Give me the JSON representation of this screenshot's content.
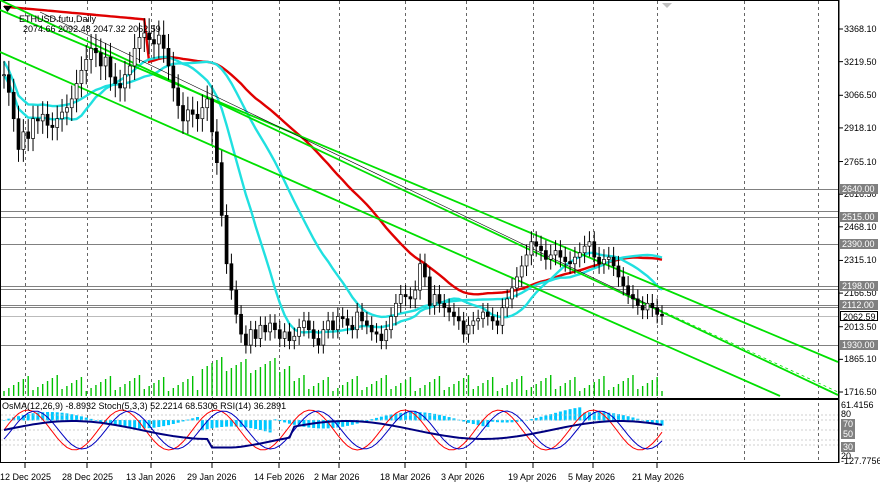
{
  "header": {
    "symbol": "ETHUSD.futu,Daily",
    "ohlc": "2074.66 2092.48 2047.32 2062.59"
  },
  "indicator_header": "OsMA(12,26,9) -8.8932 Stoch(5,3,3) 52.2214 68.5306 RSI(14) 36.2891",
  "price_ticks": [
    "3368.10",
    "3219.50",
    "3066.50",
    "2918.10",
    "2765.10",
    "2616.50",
    "2468.10",
    "2315.10",
    "2166.50",
    "2013.50",
    "1865.10",
    "1716.50"
  ],
  "level_labels": [
    {
      "text": "2640.00",
      "bg": "#808080",
      "fg": "#ffffff"
    },
    {
      "text": "2515.00",
      "bg": "#808080",
      "fg": "#ffffff"
    },
    {
      "text": "2390.00",
      "bg": "#808080",
      "fg": "#ffffff"
    },
    {
      "text": "2198.00",
      "bg": "#808080",
      "fg": "#ffffff"
    },
    {
      "text": "2112.00",
      "bg": "#808080",
      "fg": "#ffffff"
    },
    {
      "text": "2062.59",
      "bg": "#ffffff",
      "fg": "#000000"
    },
    {
      "text": "1930.00",
      "bg": "#808080",
      "fg": "#ffffff"
    }
  ],
  "ind_ticks": [
    "61.4156",
    "80",
    "70",
    "50",
    "30",
    "20",
    "-127.7756"
  ],
  "date_labels": [
    "12 Dec 2025",
    "28 Dec 2025",
    "13 Jan 2026",
    "29 Jan 2026",
    "14 Feb 2026",
    "2 Mar 2026",
    "18 Mar 2026",
    "3 Apr 2026",
    "19 Apr 2026",
    "5 May 2026",
    "21 May 2026"
  ],
  "colors": {
    "ema_slow": "#e00000",
    "ema_mid": "#20e0e0",
    "channel": "#00e000",
    "candle": "#000000",
    "volume": "#00c000",
    "osma": "#00c8ff",
    "stoch_main": "#0000c0",
    "stoch_signal": "#ff0000",
    "rsi": "#000080"
  }
}
